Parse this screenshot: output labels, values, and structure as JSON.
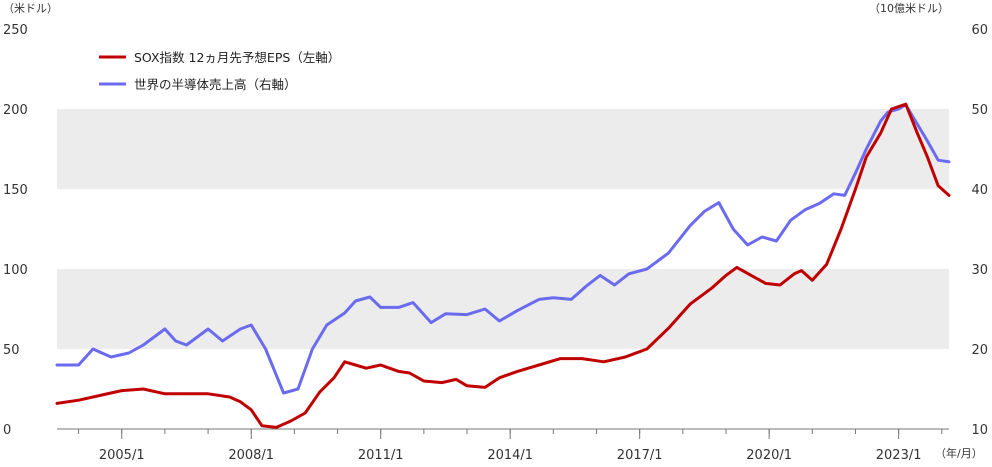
{
  "chart_data": {
    "type": "line",
    "left_unit": "（米ドル）",
    "right_unit": "（10億米ドル）",
    "x_unit": "（年/月）",
    "x_tick_labels": [
      "2005/1",
      "2008/1",
      "2011/1",
      "2014/1",
      "2017/1",
      "2020/1",
      "2023/1"
    ],
    "y_left": {
      "min": 0,
      "max": 250,
      "ticks": [
        "0",
        "50",
        "100",
        "150",
        "200",
        "250"
      ]
    },
    "y_right": {
      "min": 10,
      "max": 60,
      "ticks": [
        "10",
        "20",
        "30",
        "40",
        "50",
        "60"
      ]
    },
    "grid": "alternating shaded bands 50-100 and 150-200 (left axis)",
    "legend_position": "top-left",
    "series": [
      {
        "name": "SOX指数 12ヵ月先予想EPS（左軸）",
        "axis": "left",
        "color": "#c00000",
        "points": [
          [
            "2003/7",
            16
          ],
          [
            "2004/1",
            18
          ],
          [
            "2004/7",
            21
          ],
          [
            "2005/1",
            24
          ],
          [
            "2005/7",
            25
          ],
          [
            "2006/1",
            22
          ],
          [
            "2006/7",
            22
          ],
          [
            "2007/1",
            22
          ],
          [
            "2007/7",
            20
          ],
          [
            "2007/10",
            17
          ],
          [
            "2008/1",
            12
          ],
          [
            "2008/4",
            2
          ],
          [
            "2008/8",
            1
          ],
          [
            "2008/12",
            5
          ],
          [
            "2009/4",
            10
          ],
          [
            "2009/8",
            23
          ],
          [
            "2009/12",
            32
          ],
          [
            "2010/3",
            42
          ],
          [
            "2010/6",
            40
          ],
          [
            "2010/9",
            38
          ],
          [
            "2011/1",
            40
          ],
          [
            "2011/6",
            36
          ],
          [
            "2011/9",
            35
          ],
          [
            "2012/1",
            30
          ],
          [
            "2012/6",
            29
          ],
          [
            "2012/10",
            31
          ],
          [
            "2013/1",
            27
          ],
          [
            "2013/6",
            26
          ],
          [
            "2013/10",
            32
          ],
          [
            "2014/3",
            36
          ],
          [
            "2014/9",
            40
          ],
          [
            "2015/3",
            44
          ],
          [
            "2015/9",
            44
          ],
          [
            "2016/3",
            42
          ],
          [
            "2016/9",
            45
          ],
          [
            "2017/3",
            50
          ],
          [
            "2017/9",
            63
          ],
          [
            "2018/3",
            78
          ],
          [
            "2018/9",
            88
          ],
          [
            "2019/1",
            96
          ],
          [
            "2019/4",
            101
          ],
          [
            "2019/8",
            96
          ],
          [
            "2019/12",
            91
          ],
          [
            "2020/4",
            90
          ],
          [
            "2020/8",
            97
          ],
          [
            "2020/10",
            99
          ],
          [
            "2021/1",
            93
          ],
          [
            "2021/5",
            103
          ],
          [
            "2021/9",
            125
          ],
          [
            "2022/1",
            150
          ],
          [
            "2022/4",
            170
          ],
          [
            "2022/8",
            185
          ],
          [
            "2022/11",
            200
          ],
          [
            "2023/3",
            203
          ],
          [
            "2023/6",
            186
          ],
          [
            "2023/9",
            170
          ],
          [
            "2023/12",
            152
          ],
          [
            "2024/3",
            146
          ]
        ]
      },
      {
        "name": "世界の半導体売上高（右軸）",
        "axis": "right",
        "color": "#6b6bef",
        "points": [
          [
            "2003/7",
            18
          ],
          [
            "2004/1",
            18
          ],
          [
            "2004/5",
            20
          ],
          [
            "2004/10",
            19
          ],
          [
            "2005/3",
            19.5
          ],
          [
            "2005/7",
            20.5
          ],
          [
            "2006/1",
            22.5
          ],
          [
            "2006/4",
            21
          ],
          [
            "2006/7",
            20.5
          ],
          [
            "2007/1",
            22.5
          ],
          [
            "2007/5",
            21
          ],
          [
            "2007/10",
            22.5
          ],
          [
            "2008/1",
            23
          ],
          [
            "2008/5",
            20
          ],
          [
            "2008/10",
            14.5
          ],
          [
            "2009/2",
            15
          ],
          [
            "2009/6",
            20
          ],
          [
            "2009/10",
            23
          ],
          [
            "2010/3",
            24.5
          ],
          [
            "2010/6",
            26
          ],
          [
            "2010/10",
            26.5
          ],
          [
            "2011/1",
            25.2
          ],
          [
            "2011/6",
            25.2
          ],
          [
            "2011/10",
            25.8
          ],
          [
            "2012/3",
            23.3
          ],
          [
            "2012/7",
            24.4
          ],
          [
            "2013/1",
            24.3
          ],
          [
            "2013/6",
            25
          ],
          [
            "2013/10",
            23.5
          ],
          [
            "2014/3",
            24.8
          ],
          [
            "2014/9",
            26.2
          ],
          [
            "2015/1",
            26.4
          ],
          [
            "2015/6",
            26.2
          ],
          [
            "2015/10",
            27.8
          ],
          [
            "2016/2",
            29.2
          ],
          [
            "2016/6",
            28
          ],
          [
            "2016/10",
            29.4
          ],
          [
            "2017/3",
            30
          ],
          [
            "2017/9",
            32
          ],
          [
            "2018/3",
            35.4
          ],
          [
            "2018/7",
            37.2
          ],
          [
            "2018/11",
            38.3
          ],
          [
            "2019/3",
            35
          ],
          [
            "2019/7",
            33
          ],
          [
            "2019/11",
            34
          ],
          [
            "2020/3",
            33.5
          ],
          [
            "2020/7",
            36.1
          ],
          [
            "2020/11",
            37.4
          ],
          [
            "2021/3",
            38.2
          ],
          [
            "2021/7",
            39.4
          ],
          [
            "2021/10",
            39.2
          ],
          [
            "2022/1",
            42
          ],
          [
            "2022/4",
            45
          ],
          [
            "2022/8",
            48.5
          ],
          [
            "2022/10",
            49.6
          ],
          [
            "2023/1",
            50
          ],
          [
            "2023/3",
            50.5
          ],
          [
            "2023/5",
            49
          ],
          [
            "2023/9",
            46
          ],
          [
            "2023/12",
            43.6
          ],
          [
            "2024/3",
            43.4
          ]
        ]
      }
    ]
  }
}
